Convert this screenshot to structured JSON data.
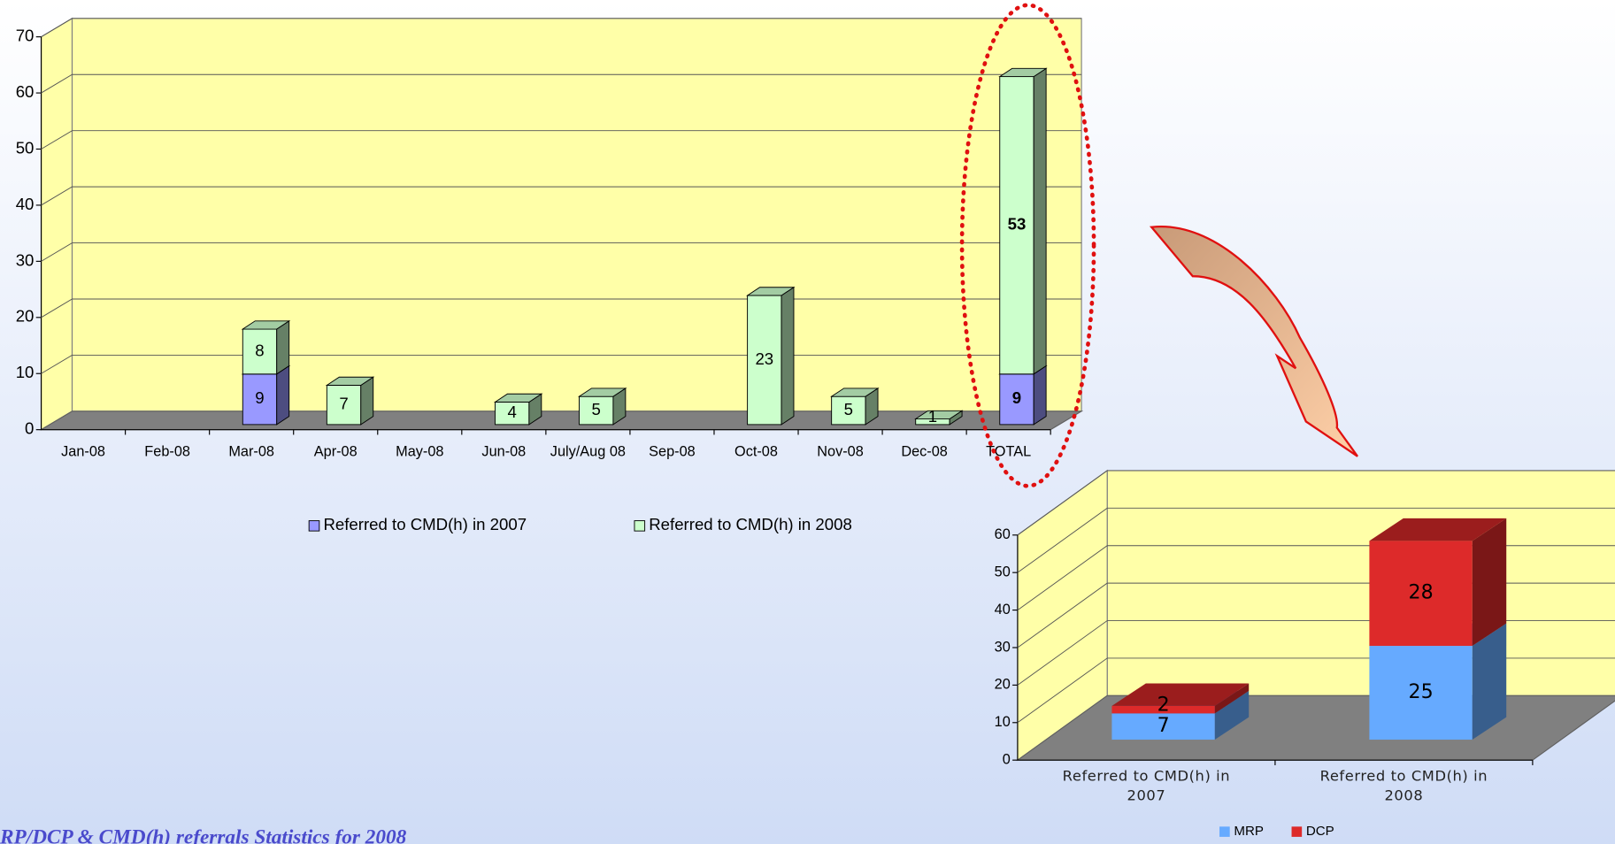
{
  "chart_data": [
    {
      "type": "bar",
      "stacked": true,
      "categories": [
        "Jan-08",
        "Feb-08",
        "Mar-08",
        "Apr-08",
        "May-08",
        "Jun-08",
        "July/Aug 08",
        "Sep-08",
        "Oct-08",
        "Nov-08",
        "Dec-08",
        "TOTAL"
      ],
      "series": [
        {
          "name": "Referred to CMD(h) in 2007",
          "color": "#9999ff",
          "values": [
            null,
            null,
            9,
            null,
            null,
            null,
            null,
            null,
            null,
            null,
            null,
            9
          ]
        },
        {
          "name": "Referred to CMD(h) in 2008",
          "color": "#ccffcc",
          "values": [
            null,
            null,
            8,
            7,
            null,
            4,
            5,
            null,
            23,
            5,
            1,
            53
          ]
        }
      ],
      "ylim": [
        0,
        70
      ],
      "yticks": [
        0,
        10,
        20,
        30,
        40,
        50,
        60,
        70
      ],
      "grid": true,
      "legend": "bottom"
    },
    {
      "type": "bar",
      "stacked": true,
      "categories": [
        "Referred to CMD(h) in 2007",
        "Referred to CMD(h) in 2008"
      ],
      "series": [
        {
          "name": "MRP",
          "color": "#66aaff",
          "values": [
            7,
            25
          ]
        },
        {
          "name": "DCP",
          "color": "#dd2a2a",
          "values": [
            2,
            28
          ]
        }
      ],
      "ylim": [
        0,
        60
      ],
      "yticks": [
        0,
        10,
        20,
        30,
        40,
        50,
        60
      ],
      "grid": true,
      "legend": "bottom"
    }
  ],
  "caption": "RP/DCP & CMD(h) referrals Statistics for 2008"
}
